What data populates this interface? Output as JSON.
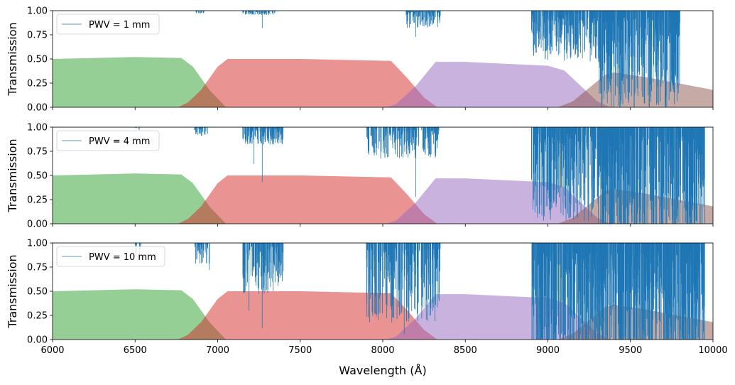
{
  "chart_data": {
    "type": "area",
    "xlabel": "Wavelength (Å)",
    "ylabel": "Transmission",
    "xlim": [
      6000,
      10000
    ],
    "ylim": [
      0,
      1
    ],
    "x_ticks": [
      6000,
      6500,
      7000,
      7500,
      8000,
      8500,
      9000,
      9500,
      10000
    ],
    "y_ticks": [
      "0.00",
      "0.25",
      "0.50",
      "0.75",
      "1.00"
    ],
    "grid": false,
    "legend_position": "upper-left",
    "filters": [
      {
        "color": "#2ca02c",
        "x": [
          6000,
          6500,
          6780,
          6850,
          6950,
          7050
        ],
        "y": [
          0.5,
          0.52,
          0.51,
          0.42,
          0.18,
          0.0
        ]
      },
      {
        "color": "#d62728",
        "x": [
          6760,
          6820,
          6900,
          7000,
          7060,
          7500,
          8050,
          8150,
          8250,
          8330
        ],
        "y": [
          0.0,
          0.05,
          0.18,
          0.42,
          0.5,
          0.5,
          0.48,
          0.3,
          0.1,
          0.0
        ]
      },
      {
        "color": "#9467bd",
        "x": [
          8020,
          8080,
          8200,
          8320,
          8500,
          9000,
          9100,
          9200,
          9300,
          9380
        ],
        "y": [
          0.0,
          0.03,
          0.22,
          0.47,
          0.47,
          0.43,
          0.38,
          0.22,
          0.06,
          0.0
        ]
      },
      {
        "color": "#8c564b",
        "x": [
          9060,
          9150,
          9250,
          9350,
          9400,
          9600,
          10000
        ],
        "y": [
          0.0,
          0.06,
          0.2,
          0.34,
          0.36,
          0.31,
          0.18
        ]
      }
    ],
    "telluric_color": "#1f77b4",
    "panels": [
      {
        "legend_label": "PWV = 1 mm",
        "absorption_bands": [
          {
            "start": 6860,
            "end": 6920,
            "density": 1.0,
            "depth": 0.02
          },
          {
            "start": 7150,
            "end": 7350,
            "density": 1.0,
            "depth": 0.03
          },
          {
            "start": 8140,
            "end": 8350,
            "density": 1.2,
            "depth": 0.12
          },
          {
            "start": 8900,
            "end": 9300,
            "density": 1.5,
            "depth": 0.35
          },
          {
            "start": 9300,
            "end": 9800,
            "density": 1.8,
            "depth": 0.7
          }
        ],
        "absorption_lines": [
          {
            "x": 7270,
            "y": 0.82
          },
          {
            "x": 8200,
            "y": 0.73
          },
          {
            "x": 9000,
            "y": 0.49
          },
          {
            "x": 9320,
            "y": 0.15
          },
          {
            "x": 9360,
            "y": 0.04
          },
          {
            "x": 9400,
            "y": 0.0
          }
        ]
      },
      {
        "legend_label": "PWV = 4 mm",
        "absorption_bands": [
          {
            "start": 6500,
            "end": 6530,
            "density": 0.3,
            "depth": 0.05
          },
          {
            "start": 6860,
            "end": 6940,
            "density": 1.0,
            "depth": 0.06
          },
          {
            "start": 7150,
            "end": 7400,
            "density": 1.2,
            "depth": 0.12
          },
          {
            "start": 7900,
            "end": 8340,
            "density": 1.0,
            "depth": 0.22
          },
          {
            "start": 8900,
            "end": 9300,
            "density": 1.5,
            "depth": 0.65
          },
          {
            "start": 9300,
            "end": 9950,
            "density": 2.0,
            "depth": 0.9
          }
        ],
        "absorption_lines": [
          {
            "x": 7220,
            "y": 0.62
          },
          {
            "x": 7270,
            "y": 0.43
          },
          {
            "x": 8200,
            "y": 0.28
          },
          {
            "x": 8990,
            "y": 0.18
          },
          {
            "x": 9330,
            "y": 0.0
          },
          {
            "x": 9380,
            "y": 0.0
          }
        ]
      },
      {
        "legend_label": "PWV = 10 mm",
        "absorption_bands": [
          {
            "start": 6500,
            "end": 6540,
            "density": 0.4,
            "depth": 0.1
          },
          {
            "start": 6860,
            "end": 6950,
            "density": 1.0,
            "depth": 0.15
          },
          {
            "start": 7150,
            "end": 7400,
            "density": 1.3,
            "depth": 0.35
          },
          {
            "start": 7900,
            "end": 8350,
            "density": 1.3,
            "depth": 0.55
          },
          {
            "start": 8900,
            "end": 9300,
            "density": 1.8,
            "depth": 0.95
          },
          {
            "start": 9300,
            "end": 9950,
            "density": 2.2,
            "depth": 1.0
          }
        ],
        "absorption_lines": [
          {
            "x": 6950,
            "y": 0.72
          },
          {
            "x": 7190,
            "y": 0.3
          },
          {
            "x": 7270,
            "y": 0.12
          },
          {
            "x": 8130,
            "y": 0.06
          },
          {
            "x": 8330,
            "y": 0.33
          },
          {
            "x": 8960,
            "y": 0.02
          },
          {
            "x": 9330,
            "y": 0.0
          },
          {
            "x": 9440,
            "y": 0.0
          }
        ]
      }
    ]
  }
}
